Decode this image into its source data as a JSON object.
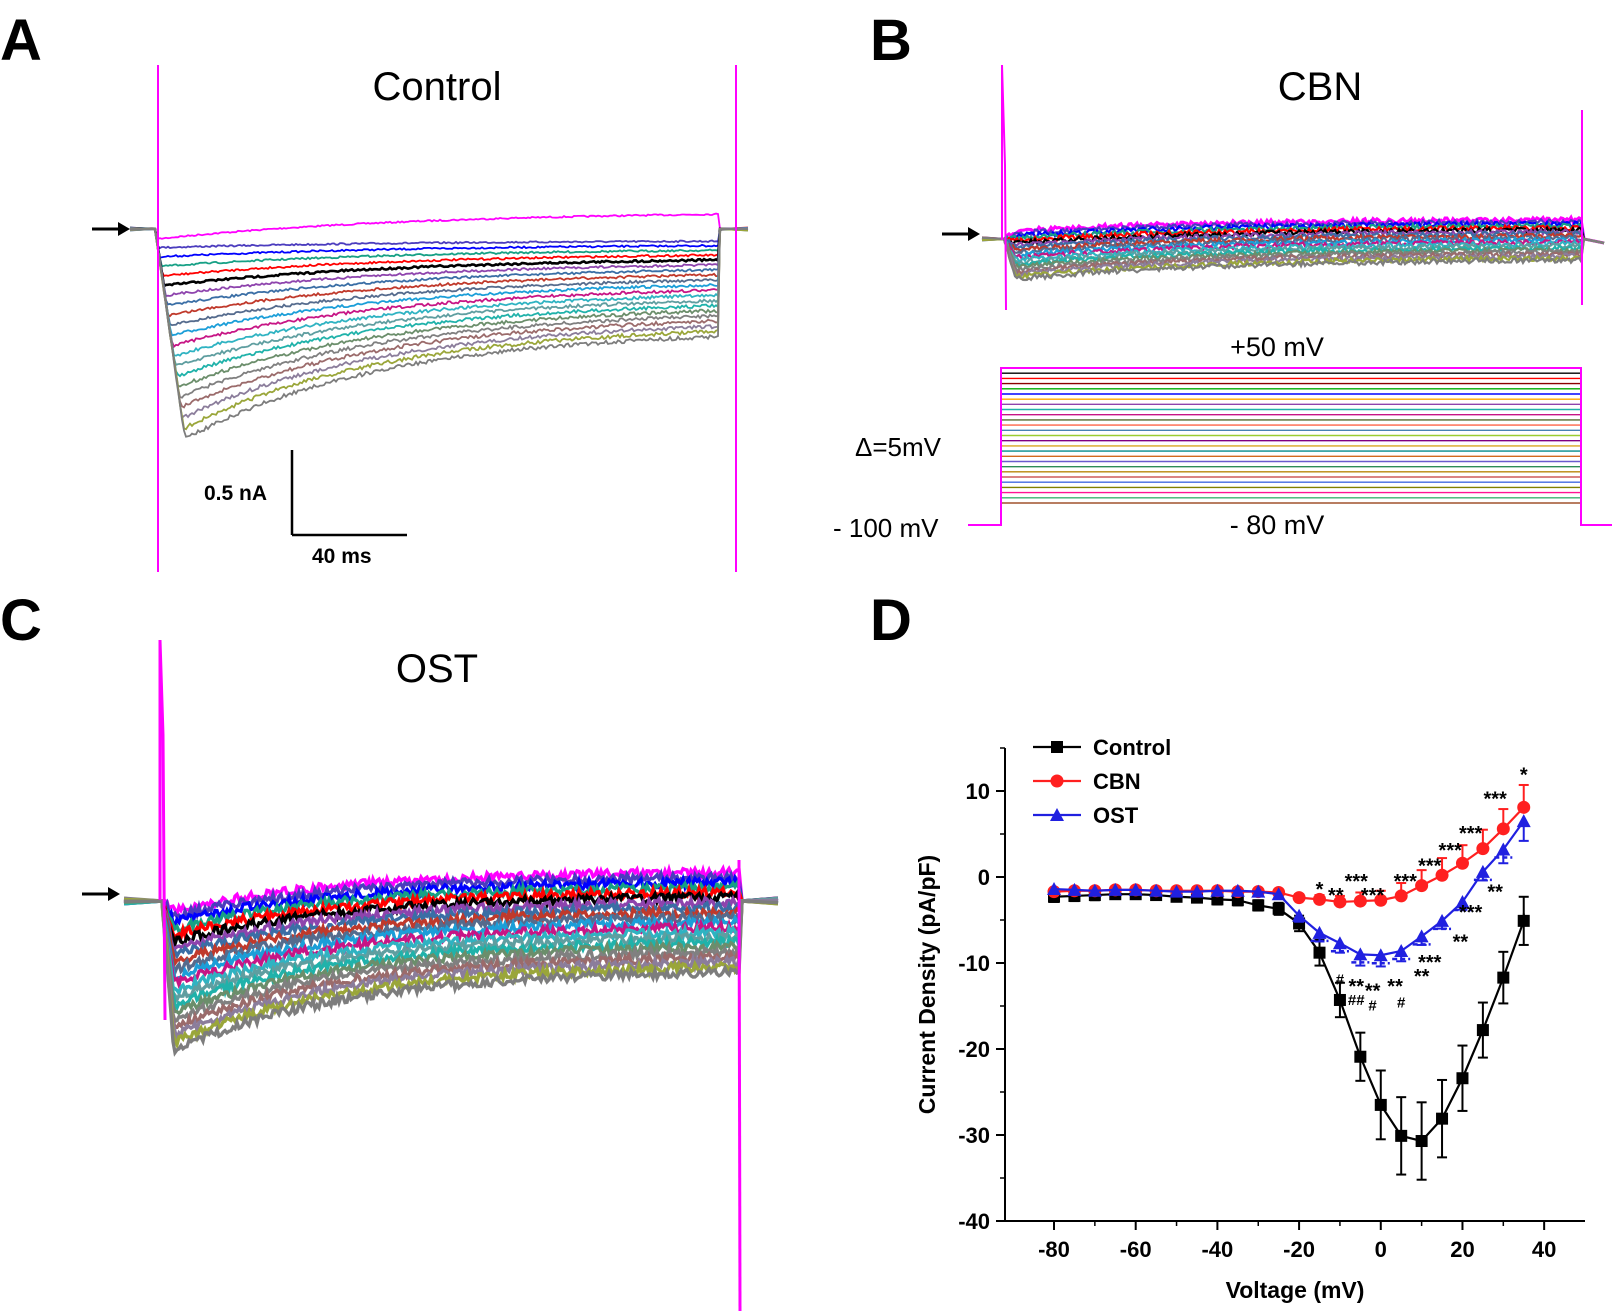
{
  "panels": {
    "a": {
      "letter": "A",
      "title": "Control",
      "scale_current": "0.5 nA",
      "scale_time": "40 ms"
    },
    "b": {
      "letter": "B",
      "title": "CBN",
      "protocol_top": "+50 mV",
      "protocol_step": "Δ=5mV",
      "protocol_holding": "- 100 mV",
      "protocol_bottom": "- 80 mV"
    },
    "c": {
      "letter": "C",
      "title": "OST"
    },
    "d": {
      "letter": "D"
    }
  },
  "trace_colors": [
    "#ff00ff",
    "#4b3cbe",
    "#0000ff",
    "#16a085",
    "#ff0000",
    "#000000",
    "#8e44ad",
    "#3a6ea5",
    "#c0392b",
    "#556b8d",
    "#1b9ed8",
    "#c71585",
    "#2fb3c2",
    "#5f9ea0",
    "#20b2aa",
    "#6b8e6b",
    "#808080",
    "#9b6b6b",
    "#8b7d9b",
    "#9aa63a",
    "#7d7d7d"
  ],
  "protocol_colors": [
    "#ff00ff",
    "#000000",
    "#ff0000",
    "#8b0000",
    "#00aa00",
    "#0000ff",
    "#ffa500",
    "#8e44ad",
    "#20b2aa",
    "#c71585",
    "#556b2f",
    "#ff6347",
    "#4682b4",
    "#9acd32",
    "#800080",
    "#daa520",
    "#008b8b",
    "#d2691e",
    "#6a5acd",
    "#2e8b57",
    "#b8860b",
    "#cd5c5c",
    "#4169e1",
    "#808000",
    "#ff1493",
    "#3cb371",
    "#a0522d"
  ],
  "chart_data": {
    "type": "line",
    "xlabel": "Voltage (mV)",
    "ylabel": "Current Density (pA/pF)",
    "xlim": [
      -92,
      50
    ],
    "ylim": [
      -40,
      15
    ],
    "xticks": [
      -80,
      -60,
      -40,
      -20,
      0,
      20,
      40
    ],
    "yticks": [
      10,
      0,
      -10,
      -20,
      -30,
      -40
    ],
    "x": [
      -80,
      -75,
      -70,
      -65,
      -60,
      -55,
      -50,
      -45,
      -40,
      -35,
      -30,
      -25,
      -20,
      -15,
      -10,
      -5,
      0,
      5,
      10,
      15,
      20,
      25,
      30,
      35
    ],
    "series": [
      {
        "name": "Control",
        "color": "#000000",
        "marker": "square",
        "values": [
          -2.3,
          -2.2,
          -2.1,
          -2.0,
          -2.0,
          -2.1,
          -2.3,
          -2.4,
          -2.6,
          -2.7,
          -3.3,
          -3.7,
          -5.4,
          -8.8,
          -14.3,
          -20.9,
          -26.5,
          -30.1,
          -30.7,
          -28.1,
          -23.4,
          -17.8,
          -11.7,
          -5.1
        ],
        "errors": [
          0.6,
          0.6,
          0.6,
          0.5,
          0.5,
          0.5,
          0.5,
          0.5,
          0.6,
          0.6,
          0.6,
          0.7,
          0.9,
          1.5,
          2.0,
          2.8,
          4.0,
          4.5,
          4.5,
          4.5,
          3.8,
          3.2,
          3.0,
          2.8
        ]
      },
      {
        "name": "CBN",
        "color": "#ff2020",
        "marker": "circle",
        "values": [
          -1.7,
          -1.6,
          -1.6,
          -1.5,
          -1.5,
          -1.6,
          -1.6,
          -1.6,
          -1.6,
          -1.7,
          -1.7,
          -1.8,
          -2.4,
          -2.6,
          -2.9,
          -2.8,
          -2.7,
          -2.2,
          -1.0,
          0.2,
          1.6,
          3.3,
          5.6,
          8.1
        ],
        "errors": [
          0.3,
          0.3,
          0.3,
          0.3,
          0.3,
          0.3,
          0.3,
          0.3,
          0.3,
          0.3,
          0.3,
          0.3,
          0.4,
          0.5,
          0.7,
          1.0,
          1.1,
          1.5,
          1.8,
          2.0,
          2.1,
          2.2,
          2.3,
          2.6
        ]
      },
      {
        "name": "OST",
        "color": "#2020e0",
        "marker": "triangle",
        "values": [
          -1.4,
          -1.5,
          -1.6,
          -1.5,
          -1.5,
          -1.6,
          -1.7,
          -1.7,
          -1.6,
          -1.6,
          -1.7,
          -2.0,
          -4.5,
          -6.5,
          -7.7,
          -9.0,
          -9.1,
          -8.6,
          -6.9,
          -5.1,
          -2.9,
          0.6,
          3.2,
          6.5
        ],
        "errors": [
          0.4,
          0.4,
          0.4,
          0.4,
          0.4,
          0.4,
          0.4,
          0.4,
          0.4,
          0.4,
          0.4,
          0.4,
          0.7,
          1.0,
          1.1,
          1.3,
          1.3,
          1.2,
          1.0,
          0.9,
          0.9,
          1.0,
          1.6,
          2.3
        ]
      }
    ],
    "annotations": [
      {
        "text": "*",
        "x": 35,
        "y": 11.8
      },
      {
        "text": "***",
        "x": 28,
        "y": 9.0
      },
      {
        "text": "***",
        "x": 22,
        "y": 5.0
      },
      {
        "text": "***",
        "x": 17,
        "y": 3.0
      },
      {
        "text": "***",
        "x": 12,
        "y": 1.2
      },
      {
        "text": "***",
        "x": 6,
        "y": -0.6
      },
      {
        "text": "***",
        "x": -6,
        "y": -0.6
      },
      {
        "text": "***",
        "x": -2,
        "y": -2.2
      },
      {
        "text": "*",
        "x": -15,
        "y": -1.5
      },
      {
        "text": "**",
        "x": -11,
        "y": -2.2
      },
      {
        "text": "*",
        "x": 35,
        "y": -5.2
      },
      {
        "text": "**",
        "x": 28,
        "y": -1.8
      },
      {
        "text": "***",
        "x": 22,
        "y": -4.2
      },
      {
        "text": "**",
        "x": 19.5,
        "y": -7.6
      },
      {
        "text": "***",
        "x": 12,
        "y": -10.0
      },
      {
        "text": "**",
        "x": 10,
        "y": -11.6
      },
      {
        "text": "**",
        "x": -6,
        "y": -12.8
      },
      {
        "text": "**",
        "x": -2,
        "y": -13.3
      },
      {
        "text": "**",
        "x": 3.5,
        "y": -12.8
      },
      {
        "text": "#",
        "x": -10,
        "y": -11.8
      },
      {
        "text": "##",
        "x": -6,
        "y": -14.2
      },
      {
        "text": "#",
        "x": -2,
        "y": -14.8
      },
      {
        "text": "#",
        "x": 5,
        "y": -14.5
      }
    ]
  }
}
